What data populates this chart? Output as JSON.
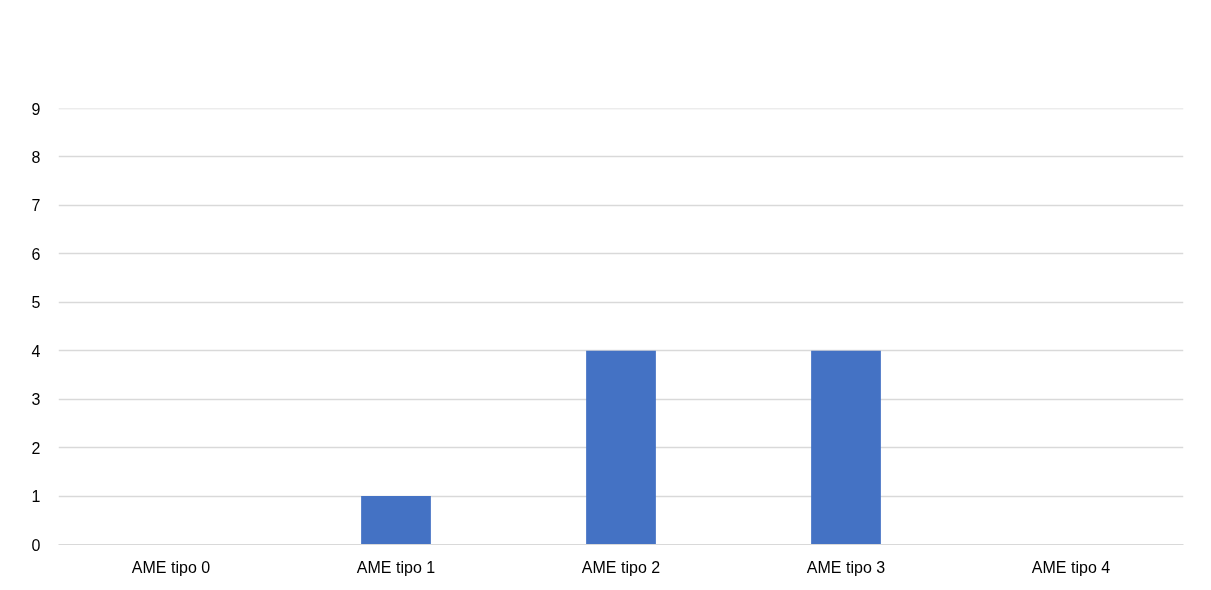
{
  "chart_data": {
    "type": "bar",
    "categories": [
      "AME tipo 0",
      "AME tipo 1",
      "AME tipo 2",
      "AME tipo 3",
      "AME tipo 4"
    ],
    "values": [
      0,
      1,
      4,
      4,
      0
    ],
    "color": "#4472c4",
    "ylim": [
      0,
      9
    ],
    "yticks": [
      0,
      1,
      2,
      3,
      4,
      5,
      6,
      7,
      8,
      9
    ],
    "grid": "y"
  }
}
